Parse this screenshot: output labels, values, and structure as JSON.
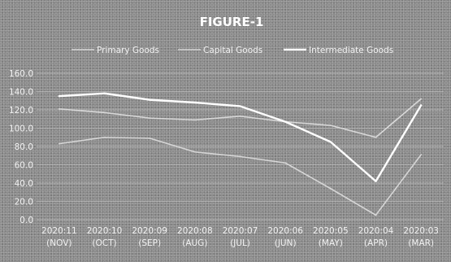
{
  "chart_data": {
    "type": "line",
    "title": "FIGURE-1",
    "xlabel": "",
    "ylabel": "",
    "ylim": [
      0,
      160
    ],
    "yticks": [
      "0.0",
      "20.0",
      "40.0",
      "60.0",
      "80.0",
      "100.0",
      "120.0",
      "140.0",
      "160.0"
    ],
    "grid": true,
    "legend_position": "top",
    "categories": [
      [
        "2020:11",
        "(NOV)"
      ],
      [
        "2020:10",
        "(OCT)"
      ],
      [
        "2020:09",
        "(SEP)"
      ],
      [
        "2020:08",
        "(AUG)"
      ],
      [
        "2020:07",
        "(JUL)"
      ],
      [
        "2020:06",
        "(JUN)"
      ],
      [
        "2020:05",
        "(MAY)"
      ],
      [
        "2020:04",
        "(APR)"
      ],
      [
        "2020:03",
        "(MAR)"
      ]
    ],
    "series": [
      {
        "name": "Primary Goods",
        "color": "#d9d9d9",
        "width": 1.6,
        "values": [
          121,
          117,
          111,
          109,
          113,
          107,
          103,
          90,
          132
        ]
      },
      {
        "name": "Capital Goods",
        "color": "#d6d6d6",
        "width": 1.6,
        "values": [
          83,
          90,
          89,
          74,
          69,
          62,
          34,
          5,
          71
        ]
      },
      {
        "name": "Intermediate Goods",
        "color": "#ffffff",
        "width": 2.4,
        "values": [
          135,
          138,
          131,
          128,
          124,
          107,
          85,
          42,
          125
        ]
      }
    ]
  }
}
